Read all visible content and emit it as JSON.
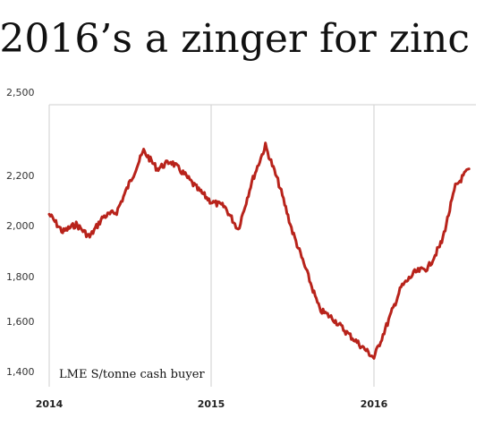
{
  "chart_data": {
    "type": "line",
    "title": "2016’s a zinger for zinc",
    "annotation": "LME S/tonne cash buyer",
    "xlabel": "",
    "ylabel": "",
    "x_ticks": [
      "2014",
      "2015",
      "2016"
    ],
    "y_ticks": [
      "2,500",
      "2,200",
      "2,000",
      "1,800",
      "1,600",
      "1,400"
    ],
    "y_tick_values": [
      2500,
      2200,
      2000,
      1800,
      1600,
      1400
    ],
    "ylim": [
      1400,
      2500
    ],
    "xlim": [
      "2014-01",
      "2016-08"
    ],
    "grid": "vertical gridlines at year starts, horizontal line at 2,500",
    "line_color": "#b8231b",
    "series": [
      {
        "x": [
          "2014-01",
          "2014-02",
          "2014-03",
          "2014-04",
          "2014-05",
          "2014-06",
          "2014-07",
          "2014-08",
          "2014-09",
          "2014-10",
          "2014-11",
          "2014-12",
          "2015-01",
          "2015-02",
          "2015-03",
          "2015-04",
          "2015-05",
          "2015-06",
          "2015-07",
          "2015-08",
          "2015-09",
          "2015-10",
          "2015-11",
          "2015-12",
          "2016-01",
          "2016-02",
          "2016-03",
          "2016-04",
          "2016-05",
          "2016-06",
          "2016-07",
          "2016-08"
        ],
        "values": [
          2070,
          2000,
          2030,
          1980,
          2060,
          2080,
          2200,
          2320,
          2250,
          2280,
          2230,
          2170,
          2120,
          2100,
          2010,
          2200,
          2340,
          2190,
          2000,
          1850,
          1680,
          1640,
          1580,
          1530,
          1480,
          1620,
          1780,
          1840,
          1860,
          1960,
          2180,
          2250
        ]
      }
    ]
  }
}
